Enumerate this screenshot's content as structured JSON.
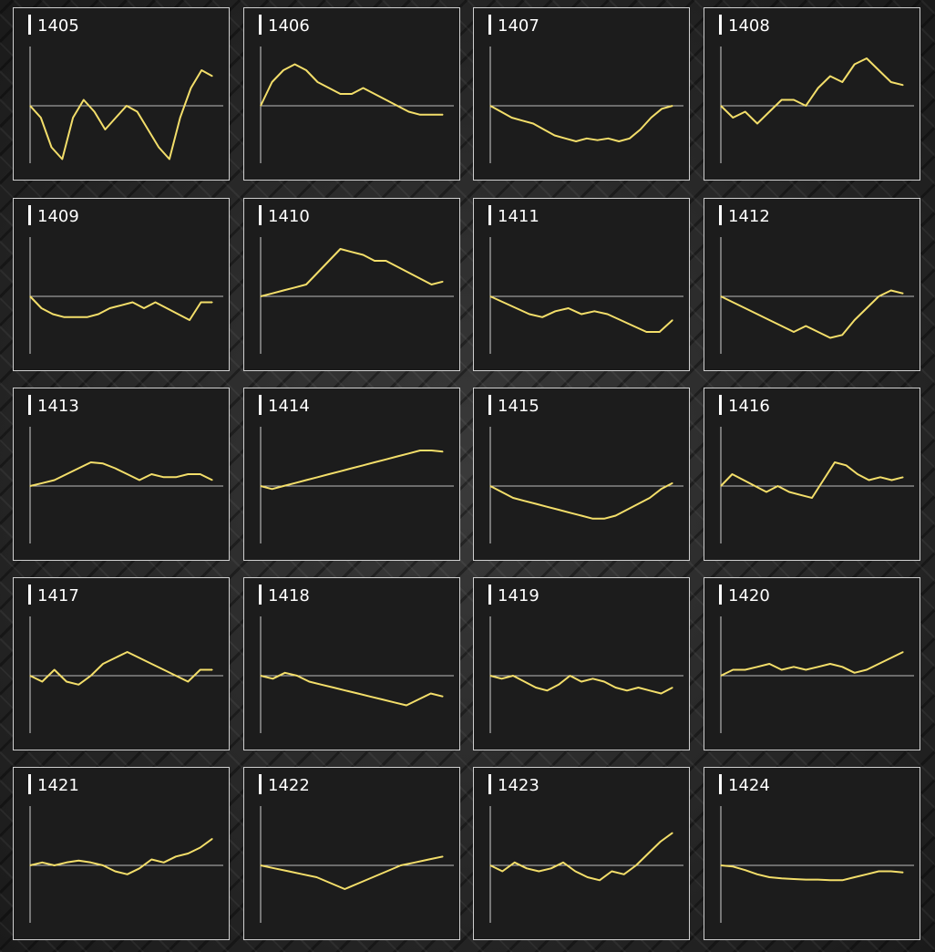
{
  "chart_data": [
    {
      "type": "line",
      "title": "1405",
      "values": [
        0,
        -2,
        -7,
        -9,
        -2,
        1,
        -1,
        -4,
        -2,
        0,
        -1,
        -4,
        -7,
        -9,
        -2,
        3,
        6,
        5
      ]
    },
    {
      "type": "line",
      "title": "1406",
      "values": [
        0,
        4,
        6,
        7,
        6,
        4,
        3,
        2,
        2,
        3,
        2,
        1,
        0,
        -1,
        -1.5,
        -1.5,
        -1.5
      ]
    },
    {
      "type": "line",
      "title": "1407",
      "values": [
        0,
        -1,
        -2,
        -2.5,
        -3,
        -4,
        -5,
        -5.5,
        -6,
        -5.5,
        -5.8,
        -5.5,
        -6,
        -5.5,
        -4,
        -2,
        -0.5,
        0
      ]
    },
    {
      "type": "line",
      "title": "1408",
      "values": [
        0,
        -2,
        -1,
        -3,
        -1,
        1,
        1,
        0,
        3,
        5,
        4,
        7,
        8,
        6,
        4,
        3.5
      ]
    },
    {
      "type": "line",
      "title": "1409",
      "values": [
        0,
        -2,
        -3,
        -3.5,
        -3.5,
        -3.5,
        -3,
        -2,
        -1.5,
        -1,
        -2,
        -1,
        -2,
        -3,
        -4,
        -1,
        -1
      ]
    },
    {
      "type": "line",
      "title": "1410",
      "values": [
        0,
        0.5,
        1,
        1.5,
        2,
        4,
        6,
        8,
        7.5,
        7,
        6,
        6,
        5,
        4,
        3,
        2,
        2.5
      ]
    },
    {
      "type": "line",
      "title": "1411",
      "values": [
        0,
        -1,
        -2,
        -3,
        -3.5,
        -2.5,
        -2,
        -3,
        -2.5,
        -3,
        -4,
        -5,
        -6,
        -6,
        -4
      ]
    },
    {
      "type": "line",
      "title": "1412",
      "values": [
        0,
        -1,
        -2,
        -3,
        -4,
        -5,
        -6,
        -5,
        -6,
        -7,
        -6.5,
        -4,
        -2,
        0,
        1,
        0.5
      ]
    },
    {
      "type": "line",
      "title": "1413",
      "values": [
        0,
        0.5,
        1,
        2,
        3,
        4,
        3.8,
        3,
        2,
        1,
        2,
        1.5,
        1.5,
        2,
        2,
        1
      ]
    },
    {
      "type": "line",
      "title": "1414",
      "values": [
        0,
        -0.5,
        0,
        0.5,
        1,
        1.5,
        2,
        2.5,
        3,
        3.5,
        4,
        4.5,
        5,
        5.5,
        6,
        6,
        5.8
      ]
    },
    {
      "type": "line",
      "title": "1415",
      "values": [
        0,
        -1,
        -2,
        -2.5,
        -3,
        -3.5,
        -4,
        -4.5,
        -5,
        -5.5,
        -5.5,
        -5,
        -4,
        -3,
        -2,
        -0.5,
        0.5
      ]
    },
    {
      "type": "line",
      "title": "1416",
      "values": [
        0,
        2,
        1,
        0,
        -1,
        0,
        -1,
        -1.5,
        -2,
        1,
        4,
        3.5,
        2,
        1,
        1.5,
        1,
        1.5
      ]
    },
    {
      "type": "line",
      "title": "1417",
      "values": [
        0,
        -1,
        1,
        -1,
        -1.5,
        0,
        2,
        3,
        4,
        3,
        2,
        1,
        0,
        -1,
        1,
        1
      ]
    },
    {
      "type": "line",
      "title": "1418",
      "values": [
        0,
        -0.5,
        0.5,
        0,
        -1,
        -1.5,
        -2,
        -2.5,
        -3,
        -3.5,
        -4,
        -4.5,
        -5,
        -4,
        -3,
        -3.5
      ]
    },
    {
      "type": "line",
      "title": "1419",
      "values": [
        0,
        -0.5,
        0,
        -1,
        -2,
        -2.5,
        -1.5,
        0,
        -1,
        -0.5,
        -1,
        -2,
        -2.5,
        -2,
        -2.5,
        -3,
        -2
      ]
    },
    {
      "type": "line",
      "title": "1420",
      "values": [
        0,
        1,
        1,
        1.5,
        2,
        1,
        1.5,
        1,
        1.5,
        2,
        1.5,
        0.5,
        1,
        2,
        3,
        4
      ]
    },
    {
      "type": "line",
      "title": "1421",
      "values": [
        0,
        0.5,
        0,
        0.5,
        0.8,
        0.5,
        0,
        -1,
        -1.5,
        -0.5,
        1,
        0.5,
        1.5,
        2,
        3,
        4.5
      ]
    },
    {
      "type": "line",
      "title": "1422",
      "values": [
        0,
        -0.5,
        -1,
        -1.5,
        -2,
        -3,
        -4,
        -3,
        -2,
        -1,
        0,
        0.5,
        1,
        1.5
      ]
    },
    {
      "type": "line",
      "title": "1423",
      "values": [
        0,
        -1,
        0.5,
        -0.5,
        -1,
        -0.5,
        0.5,
        -1,
        -2,
        -2.5,
        -1,
        -1.5,
        0,
        2,
        4,
        5.5
      ]
    },
    {
      "type": "line",
      "title": "1424",
      "values": [
        0,
        -0.2,
        -0.8,
        -1.5,
        -2,
        -2.2,
        -2.3,
        -2.4,
        -2.4,
        -2.5,
        -2.5,
        -2,
        -1.5,
        -1,
        -1,
        -1.2
      ]
    }
  ],
  "colors": {
    "line": "#f3de6a",
    "axis": "#cfcfcf",
    "baseline": "#bdbdbd",
    "panel_bg": "#1c1c1c",
    "border": "#cfcfcf"
  }
}
